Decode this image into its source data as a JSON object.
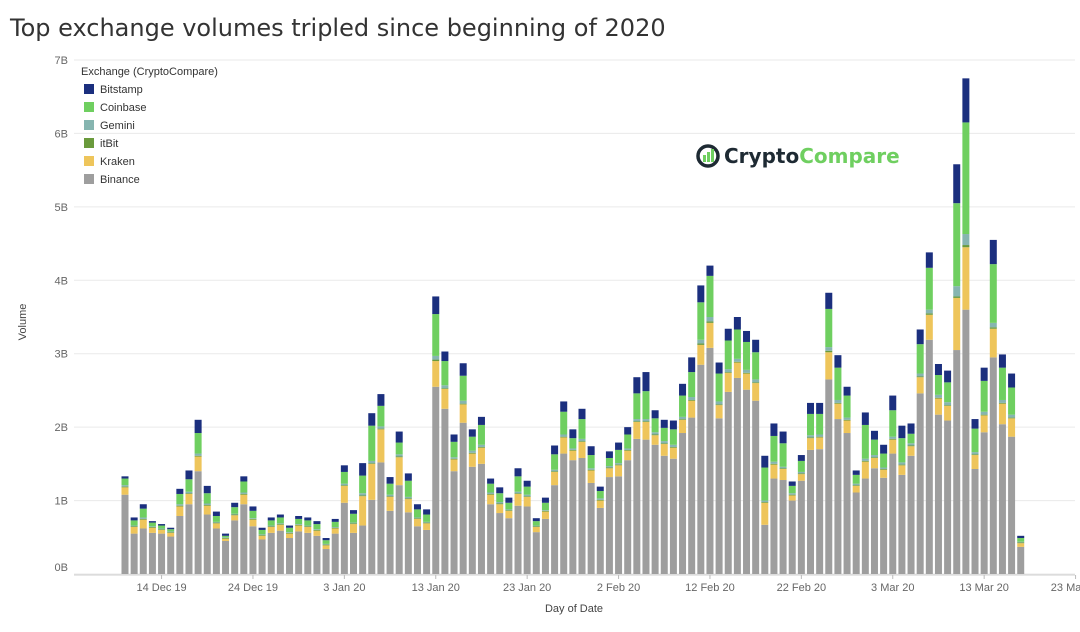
{
  "chart_data": {
    "type": "bar",
    "stacked": true,
    "title": "Top exchange volumes tripled since beginning of 2020",
    "xlabel": "Day of Date",
    "ylabel": "Volume",
    "ylim": [
      0,
      7
    ],
    "y_unit": "B",
    "yticks": [
      {
        "value": 0,
        "label": "0B"
      },
      {
        "value": 1,
        "label": "1B"
      },
      {
        "value": 2,
        "label": "2B"
      },
      {
        "value": 3,
        "label": "3B"
      },
      {
        "value": 4,
        "label": "4B"
      },
      {
        "value": 5,
        "label": "5B"
      },
      {
        "value": 6,
        "label": "6B"
      },
      {
        "value": 7,
        "label": "7B"
      }
    ],
    "xticks": [
      {
        "day": 4,
        "label": "14 Dec 19"
      },
      {
        "day": 14,
        "label": "24 Dec 19"
      },
      {
        "day": 24,
        "label": "3 Jan 20"
      },
      {
        "day": 34,
        "label": "13 Jan 20"
      },
      {
        "day": 44,
        "label": "23 Jan 20"
      },
      {
        "day": 54,
        "label": "2 Feb 20"
      },
      {
        "day": 64,
        "label": "12 Feb 20"
      },
      {
        "day": 74,
        "label": "22 Feb 20"
      },
      {
        "day": 84,
        "label": "3 Mar 20"
      },
      {
        "day": 94,
        "label": "13 Mar 20"
      },
      {
        "day": 104,
        "label": "23 Mar 20"
      }
    ],
    "grid": true,
    "legend": {
      "title": "Exchange (CryptoCompare)",
      "placement": "top-left"
    },
    "series": [
      {
        "name": "Bitstamp",
        "color": "#1b2f7e"
      },
      {
        "name": "Coinbase",
        "color": "#6fcf60"
      },
      {
        "name": "Gemini",
        "color": "#86b5b0"
      },
      {
        "name": "itBit",
        "color": "#6a9a3c"
      },
      {
        "name": "Kraken",
        "color": "#eec55b"
      },
      {
        "name": "Binance",
        "color": "#9e9e9e"
      }
    ],
    "start_date": "2019-12-10",
    "totals": [
      1.33,
      0.77,
      0.95,
      0.72,
      0.68,
      0.63,
      1.16,
      1.41,
      2.1,
      1.2,
      0.85,
      0.55,
      0.97,
      1.33,
      0.92,
      0.63,
      0.77,
      0.81,
      0.66,
      0.79,
      0.77,
      0.72,
      0.49,
      0.75,
      1.48,
      0.87,
      1.51,
      2.19,
      2.45,
      1.32,
      1.94,
      1.37,
      0.95,
      0.88,
      3.78,
      3.03,
      1.9,
      2.87,
      1.97,
      2.14,
      1.3,
      1.18,
      1.04,
      1.44,
      1.27,
      0.76,
      1.04,
      1.75,
      2.35,
      1.97,
      2.25,
      1.74,
      1.19,
      1.67,
      1.79,
      2.0,
      2.68,
      2.75,
      2.23,
      2.1,
      2.09,
      2.59,
      2.95,
      3.93,
      4.2,
      2.88,
      3.34,
      3.5,
      3.31,
      3.19,
      1.61,
      2.05,
      1.94,
      1.26,
      1.62,
      2.33,
      2.33,
      3.83,
      2.98,
      2.55,
      1.41,
      2.2,
      1.95,
      1.76,
      2.43,
      2.02,
      2.05,
      3.33,
      4.38,
      2.86,
      2.77,
      5.58,
      6.75,
      2.11,
      2.81,
      4.55,
      2.99,
      2.73,
      0.52
    ],
    "binance": [
      1.08,
      0.55,
      0.62,
      0.56,
      0.55,
      0.51,
      0.79,
      0.95,
      1.4,
      0.81,
      0.62,
      0.45,
      0.73,
      0.95,
      0.65,
      0.47,
      0.56,
      0.59,
      0.49,
      0.58,
      0.56,
      0.52,
      0.34,
      0.55,
      0.97,
      0.56,
      0.66,
      1.01,
      1.52,
      0.86,
      1.21,
      0.84,
      0.65,
      0.6,
      2.55,
      2.25,
      1.4,
      2.06,
      1.46,
      1.5,
      0.95,
      0.83,
      0.76,
      0.93,
      0.92,
      0.57,
      0.75,
      1.21,
      1.64,
      1.55,
      1.58,
      1.24,
      0.9,
      1.32,
      1.33,
      1.55,
      1.84,
      1.83,
      1.76,
      1.61,
      1.57,
      1.92,
      2.13,
      2.85,
      3.08,
      2.12,
      2.48,
      2.67,
      2.51,
      2.36,
      0.67,
      1.3,
      1.28,
      1.0,
      1.27,
      1.69,
      1.7,
      2.65,
      2.11,
      1.92,
      1.11,
      1.3,
      1.44,
      1.31,
      1.64,
      1.35,
      1.61,
      2.46,
      3.19,
      2.17,
      2.09,
      3.05,
      3.6,
      1.43,
      1.93,
      2.95,
      2.04,
      1.87,
      0.37
    ],
    "kraken": [
      0.1,
      0.09,
      0.12,
      0.07,
      0.05,
      0.05,
      0.13,
      0.14,
      0.2,
      0.12,
      0.07,
      0.03,
      0.07,
      0.13,
      0.09,
      0.05,
      0.08,
      0.08,
      0.06,
      0.08,
      0.08,
      0.07,
      0.05,
      0.07,
      0.23,
      0.12,
      0.4,
      0.49,
      0.45,
      0.19,
      0.38,
      0.18,
      0.1,
      0.09,
      0.35,
      0.27,
      0.16,
      0.25,
      0.18,
      0.22,
      0.13,
      0.12,
      0.1,
      0.16,
      0.13,
      0.07,
      0.1,
      0.18,
      0.22,
      0.13,
      0.22,
      0.17,
      0.1,
      0.12,
      0.15,
      0.13,
      0.23,
      0.24,
      0.13,
      0.16,
      0.15,
      0.18,
      0.23,
      0.27,
      0.34,
      0.18,
      0.26,
      0.21,
      0.22,
      0.24,
      0.3,
      0.19,
      0.15,
      0.07,
      0.09,
      0.16,
      0.16,
      0.37,
      0.21,
      0.17,
      0.09,
      0.23,
      0.14,
      0.11,
      0.19,
      0.13,
      0.13,
      0.22,
      0.34,
      0.22,
      0.2,
      0.71,
      0.85,
      0.19,
      0.23,
      0.39,
      0.28,
      0.25,
      0.05
    ],
    "itbit": [
      0.01,
      0.01,
      0.01,
      0.01,
      0.01,
      0.01,
      0.01,
      0.01,
      0.01,
      0.01,
      0.01,
      0.01,
      0.01,
      0.01,
      0.01,
      0.01,
      0.01,
      0.01,
      0.01,
      0.01,
      0.01,
      0.01,
      0.01,
      0.01,
      0.01,
      0.01,
      0.01,
      0.01,
      0.01,
      0.01,
      0.01,
      0.01,
      0.01,
      0.01,
      0.02,
      0.01,
      0.01,
      0.01,
      0.01,
      0.01,
      0.01,
      0.01,
      0.01,
      0.01,
      0.01,
      0.01,
      0.01,
      0.01,
      0.01,
      0.01,
      0.01,
      0.01,
      0.01,
      0.01,
      0.01,
      0.01,
      0.01,
      0.01,
      0.01,
      0.01,
      0.01,
      0.01,
      0.01,
      0.02,
      0.02,
      0.01,
      0.01,
      0.01,
      0.01,
      0.01,
      0.01,
      0.01,
      0.01,
      0.01,
      0.01,
      0.01,
      0.01,
      0.02,
      0.01,
      0.01,
      0.01,
      0.01,
      0.01,
      0.01,
      0.01,
      0.01,
      0.01,
      0.01,
      0.02,
      0.01,
      0.01,
      0.02,
      0.03,
      0.01,
      0.01,
      0.02,
      0.01,
      0.01,
      0.01
    ],
    "gemini": [
      0.02,
      0.01,
      0.02,
      0.01,
      0.01,
      0.01,
      0.02,
      0.02,
      0.03,
      0.02,
      0.01,
      0.01,
      0.01,
      0.02,
      0.01,
      0.01,
      0.01,
      0.01,
      0.01,
      0.01,
      0.01,
      0.01,
      0.01,
      0.01,
      0.02,
      0.01,
      0.03,
      0.03,
      0.03,
      0.02,
      0.03,
      0.02,
      0.01,
      0.01,
      0.05,
      0.04,
      0.02,
      0.04,
      0.03,
      0.03,
      0.02,
      0.02,
      0.01,
      0.02,
      0.02,
      0.01,
      0.01,
      0.02,
      0.03,
      0.02,
      0.03,
      0.02,
      0.02,
      0.02,
      0.02,
      0.02,
      0.03,
      0.03,
      0.03,
      0.03,
      0.03,
      0.03,
      0.04,
      0.05,
      0.06,
      0.04,
      0.04,
      0.04,
      0.04,
      0.04,
      0.02,
      0.03,
      0.02,
      0.02,
      0.02,
      0.03,
      0.03,
      0.05,
      0.04,
      0.03,
      0.02,
      0.03,
      0.03,
      0.02,
      0.03,
      0.03,
      0.03,
      0.04,
      0.05,
      0.04,
      0.04,
      0.14,
      0.15,
      0.03,
      0.04,
      0.06,
      0.04,
      0.04,
      0.01
    ],
    "coinbase": [
      0.09,
      0.07,
      0.12,
      0.05,
      0.04,
      0.03,
      0.14,
      0.17,
      0.28,
      0.14,
      0.08,
      0.02,
      0.09,
      0.15,
      0.1,
      0.06,
      0.07,
      0.08,
      0.06,
      0.07,
      0.07,
      0.07,
      0.05,
      0.07,
      0.16,
      0.12,
      0.24,
      0.48,
      0.28,
      0.15,
      0.16,
      0.22,
      0.11,
      0.1,
      0.57,
      0.33,
      0.21,
      0.34,
      0.19,
      0.27,
      0.12,
      0.12,
      0.09,
      0.21,
      0.11,
      0.06,
      0.1,
      0.21,
      0.31,
      0.14,
      0.27,
      0.18,
      0.1,
      0.11,
      0.18,
      0.19,
      0.35,
      0.38,
      0.19,
      0.18,
      0.21,
      0.29,
      0.34,
      0.51,
      0.56,
      0.38,
      0.39,
      0.4,
      0.38,
      0.37,
      0.45,
      0.35,
      0.32,
      0.1,
      0.15,
      0.29,
      0.28,
      0.52,
      0.44,
      0.3,
      0.12,
      0.46,
      0.21,
      0.19,
      0.36,
      0.33,
      0.13,
      0.4,
      0.57,
      0.27,
      0.27,
      1.13,
      1.52,
      0.32,
      0.42,
      0.8,
      0.44,
      0.37,
      0.05
    ],
    "bitstamp": [
      0.03,
      0.04,
      0.06,
      0.02,
      0.02,
      0.02,
      0.07,
      0.12,
      0.18,
      0.1,
      0.06,
      0.03,
      0.06,
      0.07,
      0.06,
      0.03,
      0.04,
      0.04,
      0.03,
      0.04,
      0.04,
      0.04,
      0.03,
      0.04,
      0.09,
      0.05,
      0.17,
      0.17,
      0.16,
      0.09,
      0.15,
      0.1,
      0.07,
      0.07,
      0.24,
      0.13,
      0.1,
      0.17,
      0.1,
      0.11,
      0.07,
      0.08,
      0.07,
      0.11,
      0.08,
      0.04,
      0.07,
      0.12,
      0.14,
      0.12,
      0.14,
      0.12,
      0.06,
      0.09,
      0.1,
      0.1,
      0.22,
      0.26,
      0.11,
      0.11,
      0.12,
      0.16,
      0.18,
      0.23,
      0.14,
      0.15,
      0.16,
      0.17,
      0.15,
      0.17,
      0.16,
      0.17,
      0.16,
      0.06,
      0.08,
      0.15,
      0.15,
      0.22,
      0.17,
      0.12,
      0.06,
      0.17,
      0.12,
      0.12,
      0.2,
      0.17,
      0.14,
      0.2,
      0.21,
      0.15,
      0.16,
      0.53,
      0.6,
      0.13,
      0.18,
      0.33,
      0.18,
      0.19,
      0.03
    ]
  },
  "logo": {
    "word1": "Crypto",
    "word2": "Compare"
  }
}
